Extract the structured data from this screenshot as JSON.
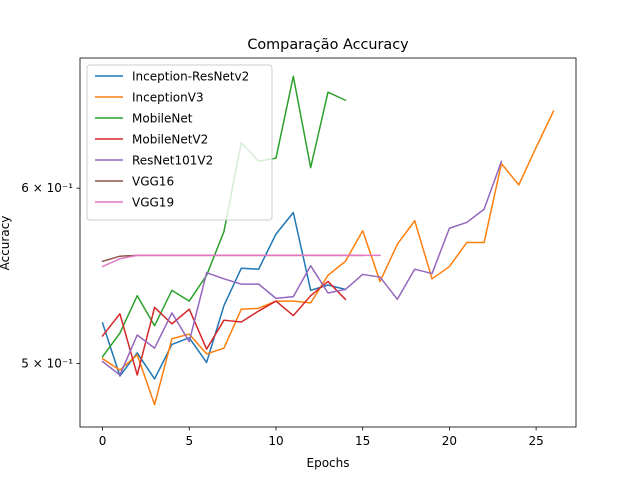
{
  "chart_data": {
    "type": "line",
    "title": "Comparação Accuracy",
    "xlabel": "Epochs",
    "ylabel": "Accuracy",
    "yscale": "log",
    "xlim": [
      -1.3,
      27.3
    ],
    "ylim": [
      0.468,
      0.687
    ],
    "xticks": [
      0,
      5,
      10,
      15,
      20,
      25
    ],
    "yticks": [
      {
        "value": 0.5,
        "label": "5 × 10⁻¹"
      },
      {
        "value": 0.6,
        "label": "6 × 10⁻¹"
      }
    ],
    "legend_position": "top-left",
    "grid": false,
    "series": [
      {
        "name": "Inception-ResNetv2",
        "color": "#1f77b4",
        "values": [
          0.5215,
          0.4935,
          0.5055,
          0.492,
          0.51,
          0.5135,
          0.5005,
          0.531,
          0.552,
          0.5515,
          0.572,
          0.585,
          0.5395,
          0.5425,
          0.54
        ]
      },
      {
        "name": "InceptionV3",
        "color": "#ff7f0e",
        "values": [
          0.5025,
          0.4965,
          0.5045,
          0.479,
          0.513,
          0.5155,
          0.505,
          0.508,
          0.529,
          0.5295,
          0.5335,
          0.5335,
          0.5325,
          0.548,
          0.556,
          0.574,
          0.5445,
          0.566,
          0.58,
          0.546,
          0.553,
          0.567,
          0.567,
          0.6155,
          0.602,
          0.626,
          0.65
        ]
      },
      {
        "name": "MobileNet",
        "color": "#2ca02c",
        "values": [
          0.5035,
          0.516,
          0.5365,
          0.52,
          0.5395,
          0.5335,
          0.548,
          0.5735,
          0.629,
          0.617,
          0.619,
          0.674,
          0.613,
          0.663,
          0.6575
        ]
      },
      {
        "name": "MobileNetV2",
        "color": "#d62728",
        "values": [
          0.5145,
          0.5265,
          0.494,
          0.53,
          0.521,
          0.529,
          0.5075,
          0.523,
          0.522,
          0.528,
          0.5335,
          0.5255,
          0.5365,
          0.5445,
          0.5345
        ]
      },
      {
        "name": "ResNet101V2",
        "color": "#9467bd",
        "values": [
          0.501,
          0.494,
          0.515,
          0.508,
          0.527,
          0.5115,
          0.5495,
          0.546,
          0.543,
          0.543,
          0.535,
          0.536,
          0.5535,
          0.538,
          0.54,
          0.5485,
          0.547,
          0.5345,
          0.5515,
          0.549,
          0.5755,
          0.579,
          0.587,
          0.617
        ]
      },
      {
        "name": "VGG16",
        "color": "#8c564b",
        "values": [
          0.556,
          0.559,
          0.5595,
          0.5595,
          0.5595,
          0.5595,
          0.5595,
          0.5595,
          0.5595,
          0.5595,
          0.5595,
          0.5595,
          0.5595,
          0.5595,
          0.5595,
          0.5595
        ]
      },
      {
        "name": "VGG19",
        "color": "#e377c2",
        "values": [
          0.553,
          0.5575,
          0.5595,
          0.5595,
          0.5595,
          0.5595,
          0.5595,
          0.5595,
          0.5595,
          0.5595,
          0.5595,
          0.5595,
          0.5595,
          0.5595,
          0.5595,
          0.5595,
          0.5595
        ]
      }
    ]
  }
}
